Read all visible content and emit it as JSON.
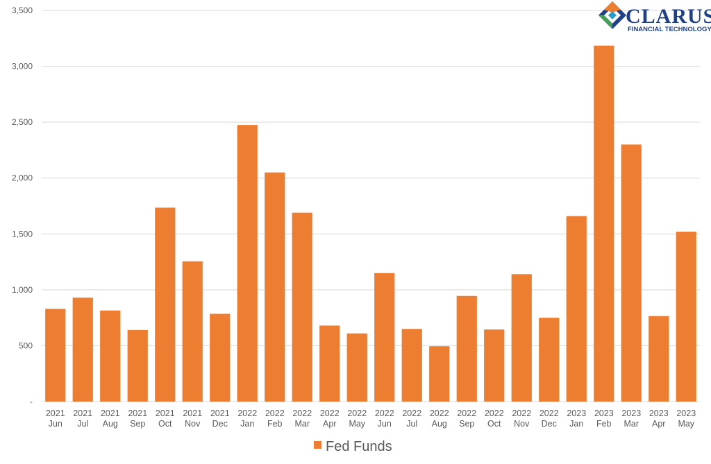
{
  "logo": {
    "name": "CLARUS",
    "tagline": "FINANCIAL TECHNOLOGY"
  },
  "colors": {
    "bar": "#ed7d31",
    "grid": "#d9d9d9",
    "text": "#595959"
  },
  "chart_data": {
    "type": "bar",
    "categories": [
      [
        "2021",
        "Jun"
      ],
      [
        "2021",
        "Jul"
      ],
      [
        "2021",
        "Aug"
      ],
      [
        "2021",
        "Sep"
      ],
      [
        "2021",
        "Oct"
      ],
      [
        "2021",
        "Nov"
      ],
      [
        "2021",
        "Dec"
      ],
      [
        "2022",
        "Jan"
      ],
      [
        "2022",
        "Feb"
      ],
      [
        "2022",
        "Mar"
      ],
      [
        "2022",
        "Apr"
      ],
      [
        "2022",
        "May"
      ],
      [
        "2022",
        "Jun"
      ],
      [
        "2022",
        "Jul"
      ],
      [
        "2022",
        "Aug"
      ],
      [
        "2022",
        "Sep"
      ],
      [
        "2022",
        "Oct"
      ],
      [
        "2022",
        "Nov"
      ],
      [
        "2022",
        "Dec"
      ],
      [
        "2023",
        "Jan"
      ],
      [
        "2023",
        "Feb"
      ],
      [
        "2023",
        "Mar"
      ],
      [
        "2023",
        "Apr"
      ],
      [
        "2023",
        "May"
      ]
    ],
    "series": [
      {
        "name": "Fed Funds",
        "values": [
          830,
          930,
          815,
          640,
          1735,
          1255,
          785,
          2475,
          2050,
          1690,
          680,
          610,
          1150,
          650,
          495,
          945,
          645,
          1140,
          750,
          1660,
          3185,
          2300,
          765,
          1520
        ]
      }
    ],
    "y_ticks": [
      "-",
      "500",
      "1,000",
      "1,500",
      "2,000",
      "2,500",
      "3,000",
      "3,500"
    ],
    "ylim": [
      0,
      3500
    ],
    "grid": true,
    "legend_position": "bottom"
  }
}
